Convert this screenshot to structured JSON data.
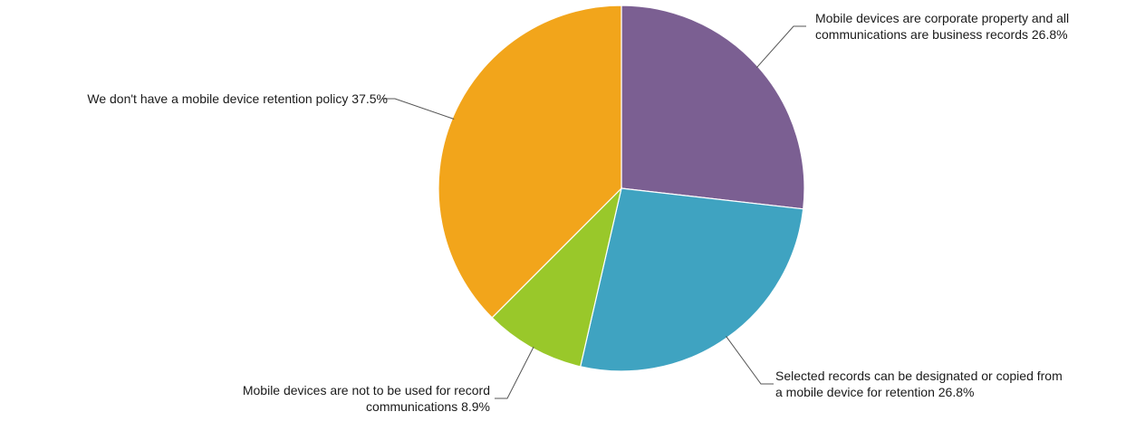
{
  "chart_data": {
    "type": "pie",
    "title": "",
    "slices": [
      {
        "label": "Mobile devices are corporate property and all communications are business records",
        "label_lines": [
          "Mobile devices are corporate property and all",
          "communications are business records 26.8%"
        ],
        "value": 26.8,
        "color": "#7b5f92"
      },
      {
        "label": "Selected records can be designated or copied from a mobile device for retention",
        "label_lines": [
          "Selected records can be designated or copied from",
          "a mobile device for retention 26.8%"
        ],
        "value": 26.8,
        "color": "#3fa3c1"
      },
      {
        "label": "Mobile devices are not to be used for record communications",
        "label_lines": [
          "Mobile devices are not to be used for record",
          "communications 8.9%"
        ],
        "value": 8.9,
        "color": "#99c82a"
      },
      {
        "label": "We don't have a mobile device retention policy",
        "label_lines": [
          "We don't have a mobile device retention policy 37.5%"
        ],
        "value": 37.5,
        "color": "#f2a51b"
      }
    ],
    "start_angle": "12 o'clock",
    "direction": "clockwise",
    "legend": "none",
    "value_suffix": "%"
  }
}
